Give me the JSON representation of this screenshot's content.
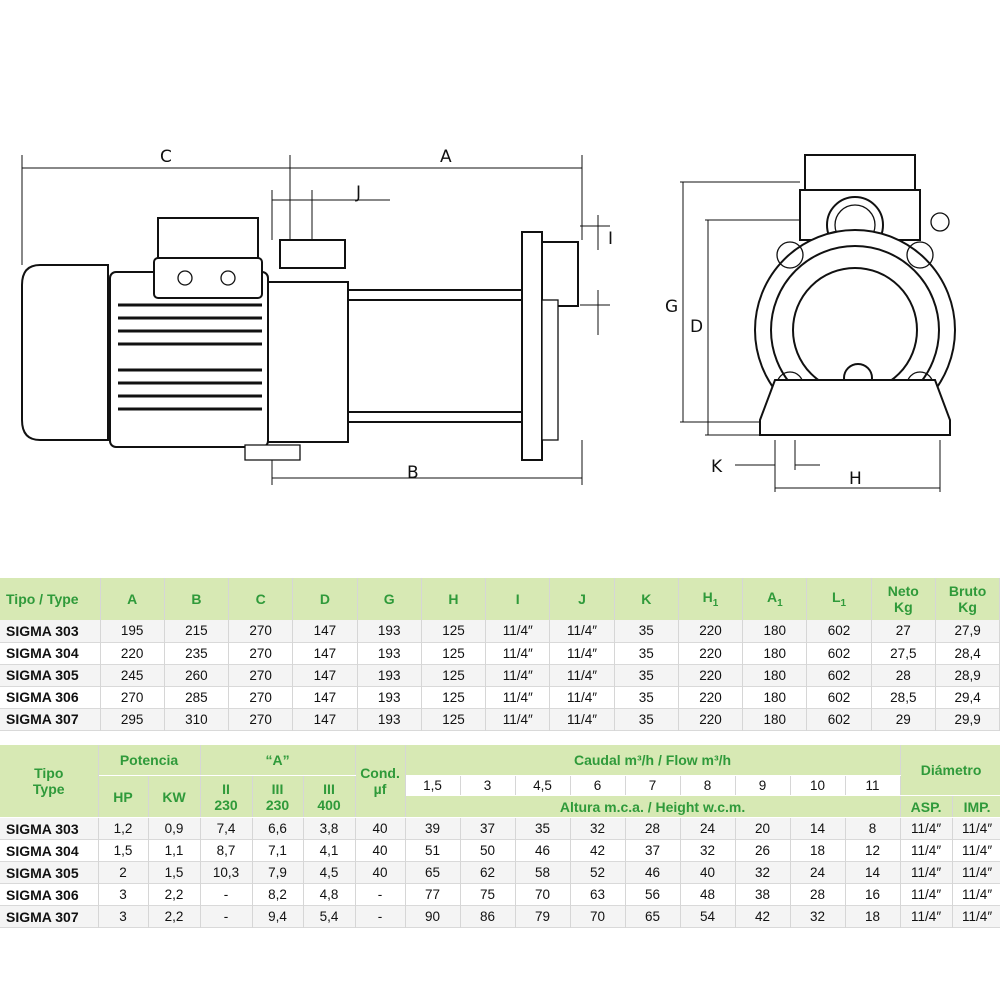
{
  "drawing": {
    "dimension_labels": {
      "C": "C",
      "A": "A",
      "J": "J",
      "I": "I",
      "B": "B",
      "G": "G",
      "D": "D",
      "K": "K",
      "H": "H"
    }
  },
  "dimensions_table": {
    "headers": [
      "Tipo / Type",
      "A",
      "B",
      "C",
      "D",
      "G",
      "H",
      "I",
      "J",
      "K",
      "H1",
      "A1",
      "L1",
      "Neto Kg",
      "Bruto Kg"
    ],
    "header_parts": {
      "H1": [
        "H",
        "1"
      ],
      "A1": [
        "A",
        "1"
      ],
      "L1": [
        "L",
        "1"
      ],
      "neto": [
        "Neto",
        "Kg"
      ],
      "bruto": [
        "Bruto",
        "Kg"
      ]
    },
    "rows": [
      [
        "SIGMA 303",
        "195",
        "215",
        "270",
        "147",
        "193",
        "125",
        "11/4″",
        "11/4″",
        "35",
        "220",
        "180",
        "602",
        "27",
        "27,9"
      ],
      [
        "SIGMA 304",
        "220",
        "235",
        "270",
        "147",
        "193",
        "125",
        "11/4″",
        "11/4″",
        "35",
        "220",
        "180",
        "602",
        "27,5",
        "28,4"
      ],
      [
        "SIGMA 305",
        "245",
        "260",
        "270",
        "147",
        "193",
        "125",
        "11/4″",
        "11/4″",
        "35",
        "220",
        "180",
        "602",
        "28",
        "28,9"
      ],
      [
        "SIGMA 306",
        "270",
        "285",
        "270",
        "147",
        "193",
        "125",
        "11/4″",
        "11/4″",
        "35",
        "220",
        "180",
        "602",
        "28,5",
        "29,4"
      ],
      [
        "SIGMA 307",
        "295",
        "310",
        "270",
        "147",
        "193",
        "125",
        "11/4″",
        "11/4″",
        "35",
        "220",
        "180",
        "602",
        "29",
        "29,9"
      ]
    ]
  },
  "performance_table": {
    "tipo": [
      "Tipo",
      "Type"
    ],
    "potencia": "Potencia",
    "hp": "HP",
    "kw": "KW",
    "amps": "“A”",
    "amp_cols": [
      [
        "II",
        "230"
      ],
      [
        "III",
        "230"
      ],
      [
        "III",
        "400"
      ]
    ],
    "cond": [
      "Cond.",
      "µf"
    ],
    "flow_title": "Caudal m³/h / Flow m³/h",
    "flows": [
      "1,5",
      "3",
      "4,5",
      "6",
      "7",
      "8",
      "9",
      "10",
      "11"
    ],
    "height_title": "Altura m.c.a. / Height w.c.m.",
    "diametro": "Diámetro",
    "asp": "ASP.",
    "imp": "IMP.",
    "rows": [
      [
        "SIGMA 303",
        "1,2",
        "0,9",
        "7,4",
        "6,6",
        "3,8",
        "40",
        "39",
        "37",
        "35",
        "32",
        "28",
        "24",
        "20",
        "14",
        "8",
        "11/4″",
        "11/4″"
      ],
      [
        "SIGMA 304",
        "1,5",
        "1,1",
        "8,7",
        "7,1",
        "4,1",
        "40",
        "51",
        "50",
        "46",
        "42",
        "37",
        "32",
        "26",
        "18",
        "12",
        "11/4″",
        "11/4″"
      ],
      [
        "SIGMA 305",
        "2",
        "1,5",
        "10,3",
        "7,9",
        "4,5",
        "40",
        "65",
        "62",
        "58",
        "52",
        "46",
        "40",
        "32",
        "24",
        "14",
        "11/4″",
        "11/4″"
      ],
      [
        "SIGMA 306",
        "3",
        "2,2",
        "-",
        "8,2",
        "4,8",
        "-",
        "77",
        "75",
        "70",
        "63",
        "56",
        "48",
        "38",
        "28",
        "16",
        "11/4″",
        "11/4″"
      ],
      [
        "SIGMA 307",
        "3",
        "2,2",
        "-",
        "9,4",
        "5,4",
        "-",
        "90",
        "86",
        "79",
        "70",
        "65",
        "54",
        "42",
        "32",
        "18",
        "11/4″",
        "11/4″"
      ]
    ]
  },
  "colors": {
    "header_bg": "#d7e9b4",
    "header_text": "#2f9a3a"
  }
}
